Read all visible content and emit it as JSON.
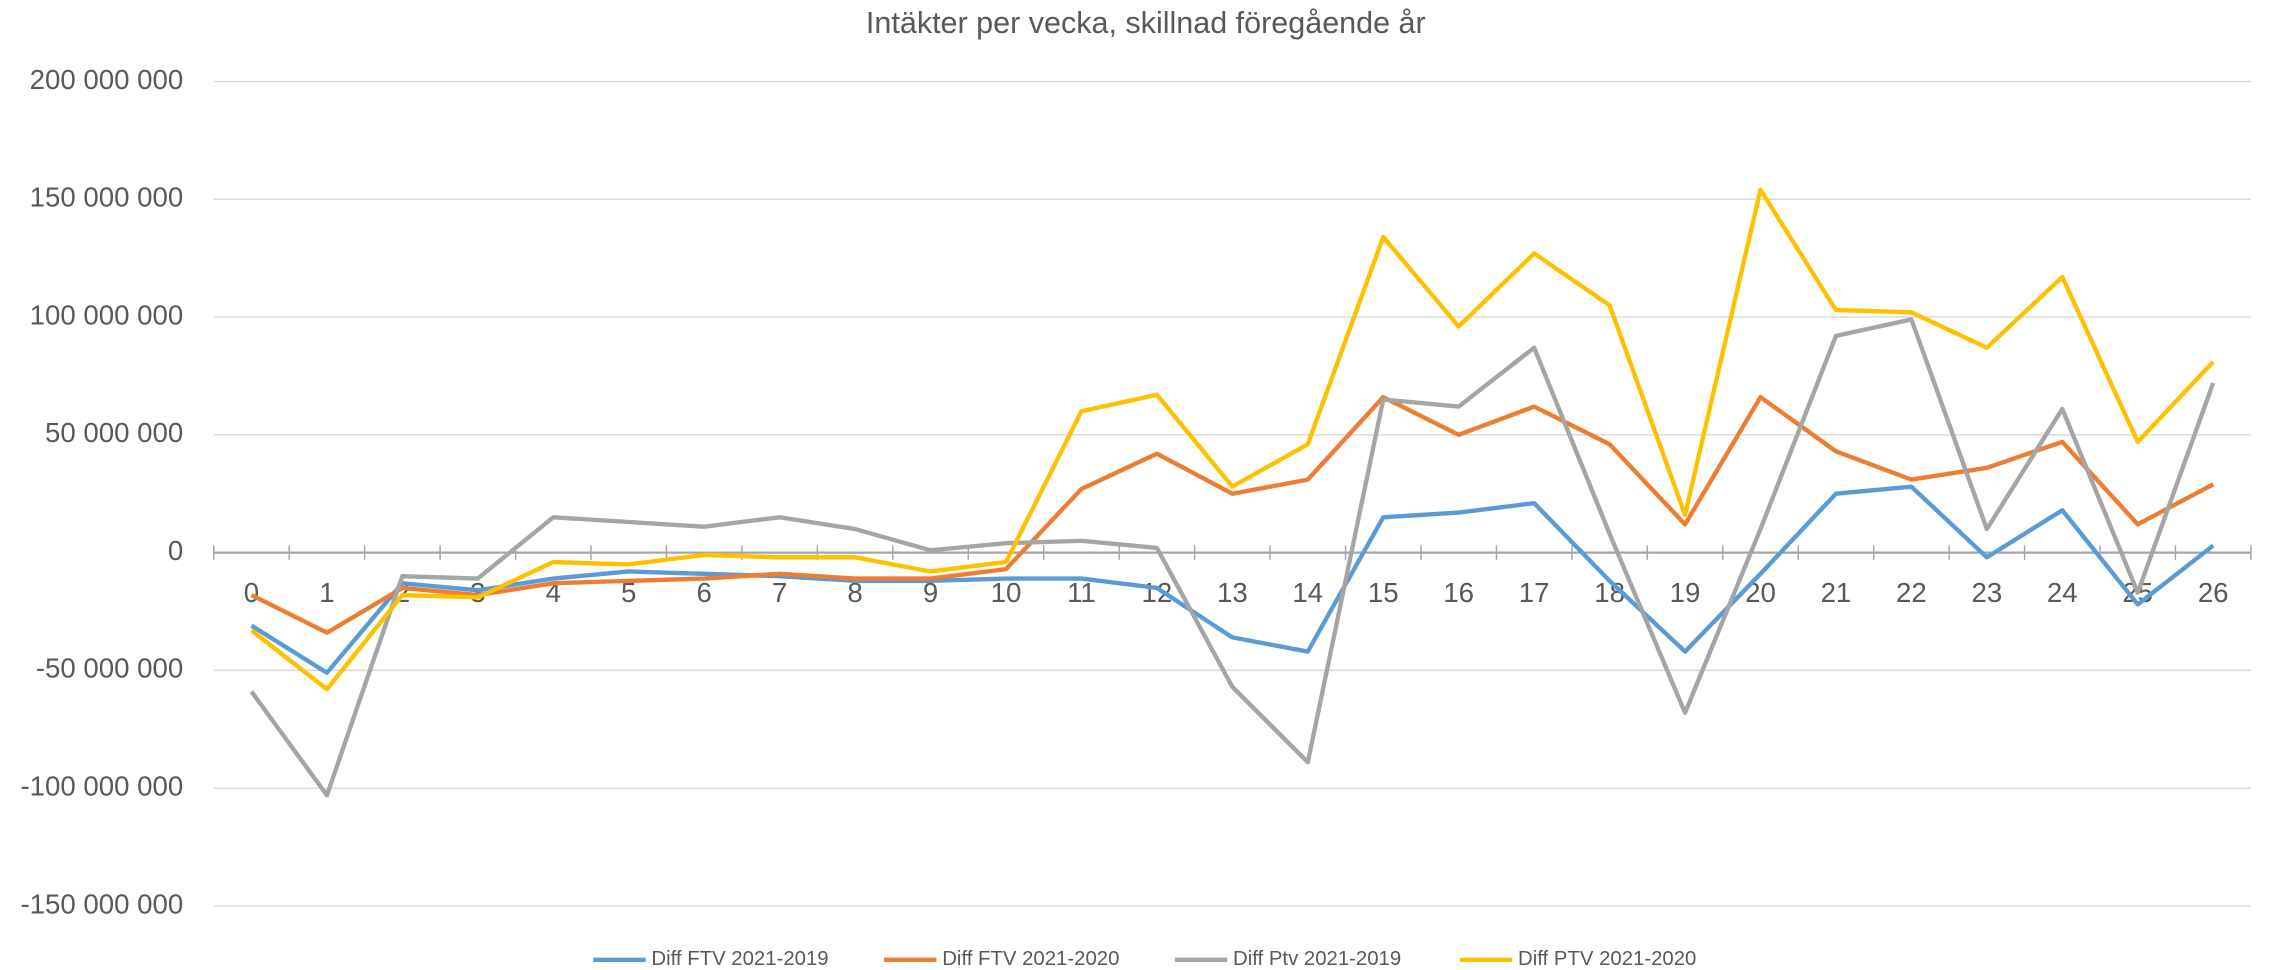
{
  "chart_data": {
    "type": "line",
    "title": "Intäkter per vecka, skillnad föregående år",
    "categories": [
      "0",
      "1",
      "2",
      "3",
      "4",
      "5",
      "6",
      "7",
      "8",
      "9",
      "10",
      "11",
      "12",
      "13",
      "14",
      "15",
      "16",
      "17",
      "18",
      "19",
      "20",
      "21",
      "22",
      "23",
      "24",
      "25",
      "26"
    ],
    "ylim": [
      -150000000,
      200000000
    ],
    "yticks": [
      {
        "value": -150000000,
        "label": "-150 000 000"
      },
      {
        "value": -100000000,
        "label": "-100 000 000"
      },
      {
        "value": -50000000,
        "label": "-50 000 000"
      },
      0,
      {
        "value": 50000000,
        "label": "50 000 000"
      },
      {
        "value": 100000000,
        "label": "100 000 000"
      },
      {
        "value": 150000000,
        "label": "150 000 000"
      },
      {
        "value": 200000000,
        "label": "200 000 000"
      }
    ],
    "grid": true,
    "legend": "bottom",
    "series": [
      {
        "name": "Diff FTV 2021-2019",
        "color": "#5b9bd5",
        "values": [
          -31000000,
          -51000000,
          -13000000,
          -16000000,
          -11000000,
          -8000000,
          -9000000,
          -10000000,
          -12000000,
          -12000000,
          -11000000,
          -11000000,
          -15000000,
          -36000000,
          -42000000,
          15000000,
          17000000,
          21000000,
          -12000000,
          -42000000,
          -9000000,
          25000000,
          28000000,
          -2000000,
          18000000,
          -22000000,
          3000000
        ]
      },
      {
        "name": "Diff FTV 2021-2020",
        "color": "#ed7d31",
        "values": [
          -18000000,
          -34000000,
          -15000000,
          -18000000,
          -13000000,
          -12000000,
          -11000000,
          -9000000,
          -11000000,
          -11000000,
          -7000000,
          27000000,
          42000000,
          25000000,
          31000000,
          66000000,
          50000000,
          62000000,
          46000000,
          12000000,
          66000000,
          43000000,
          31000000,
          36000000,
          47000000,
          12000000,
          29000000
        ]
      },
      {
        "name": "Diff Ptv 2021-2019",
        "color": "#a5a5a5",
        "values": [
          -59000000,
          -103000000,
          -10000000,
          -11000000,
          15000000,
          13000000,
          11000000,
          15000000,
          10000000,
          1000000,
          4000000,
          5000000,
          2000000,
          -57000000,
          -89000000,
          65000000,
          62000000,
          87000000,
          8000000,
          -68000000,
          10000000,
          92000000,
          99000000,
          10000000,
          61000000,
          -17000000,
          72000000
        ]
      },
      {
        "name": "Diff PTV 2021-2020",
        "color": "#ffc000",
        "values": [
          -33000000,
          -58000000,
          -18000000,
          -19000000,
          -4000000,
          -5000000,
          -1000000,
          -2000000,
          -2000000,
          -8000000,
          -4000000,
          60000000,
          67000000,
          28000000,
          46000000,
          134000000,
          96000000,
          127000000,
          105000000,
          16000000,
          154000000,
          103000000,
          102000000,
          87000000,
          117000000,
          47000000,
          81000000
        ]
      }
    ]
  }
}
